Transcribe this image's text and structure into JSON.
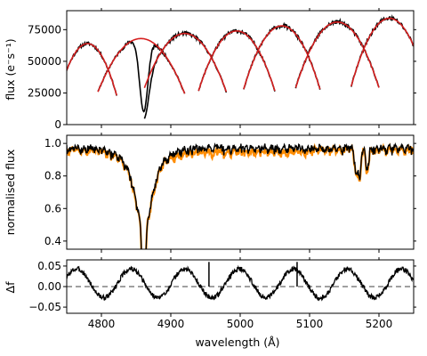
{
  "chart_data": [
    {
      "type": "line",
      "panel": "top",
      "ylabel": "flux (e⁻s⁻¹)",
      "ylim": [
        0,
        90000
      ],
      "yticks": [
        0,
        25000,
        50000,
        75000
      ],
      "xlim": [
        4750,
        5250
      ],
      "xticks": [
        4800,
        4900,
        5000,
        5100,
        5200
      ],
      "colors": {
        "observed": "#000000",
        "model": "#d62020"
      },
      "orders": [
        {
          "center": 4780,
          "peak": 64000,
          "x_start": 4738,
          "x_end": 4822
        },
        {
          "center": 4857,
          "peak": 68000,
          "x_start": 4795,
          "x_end": 4920
        },
        {
          "center": 4920,
          "peak": 72000,
          "x_start": 4862,
          "x_end": 4980
        },
        {
          "center": 4995,
          "peak": 74000,
          "x_start": 4940,
          "x_end": 5050
        },
        {
          "center": 5060,
          "peak": 78000,
          "x_start": 5005,
          "x_end": 5115
        },
        {
          "center": 5140,
          "peak": 81000,
          "x_start": 5080,
          "x_end": 5200
        },
        {
          "center": 5215,
          "peak": 84000,
          "x_start": 5160,
          "x_end": 5262
        }
      ],
      "observed_features": [
        {
          "name": "H-beta",
          "x": 4861,
          "min_flux": 5000
        }
      ]
    },
    {
      "type": "line",
      "panel": "middle",
      "ylabel": "normalised flux",
      "ylim": [
        0.35,
        1.05
      ],
      "yticks": [
        0.4,
        0.6,
        0.8,
        1.0
      ],
      "ytick_labels": [
        "0.4",
        "0.6",
        "0.8",
        "1.0"
      ],
      "xlim": [
        4750,
        5250
      ],
      "colors": {
        "reference": "#ff8c00",
        "observed": "#000000"
      },
      "features": [
        {
          "name": "H-beta",
          "x": 4861,
          "depth": 0.37
        },
        {
          "name": "line-5167",
          "x": 5167,
          "depth": 0.85
        },
        {
          "name": "line-5172",
          "x": 5172,
          "depth": 0.82
        },
        {
          "name": "line-5183",
          "x": 5183,
          "depth": 0.86
        }
      ]
    },
    {
      "type": "line",
      "panel": "bottom",
      "ylabel": "Δf",
      "xlabel": "wavelength (Å)",
      "ylim": [
        -0.065,
        0.065
      ],
      "yticks": [
        -0.05,
        0.0,
        0.05
      ],
      "ytick_labels": [
        "−0.05",
        "0.00",
        "0.05"
      ],
      "xlim": [
        4750,
        5250
      ],
      "xticks": [
        4800,
        4900,
        5000,
        5100,
        5200
      ],
      "xtick_labels": [
        "4800",
        "4900",
        "5000",
        "5100",
        "5200"
      ],
      "reference_line": 0.0,
      "colors": {
        "residual": "#000000",
        "reference": "#808080"
      },
      "spikes": [
        {
          "x": 4955,
          "value": 0.06
        },
        {
          "x": 5082,
          "value": 0.06
        }
      ]
    }
  ]
}
